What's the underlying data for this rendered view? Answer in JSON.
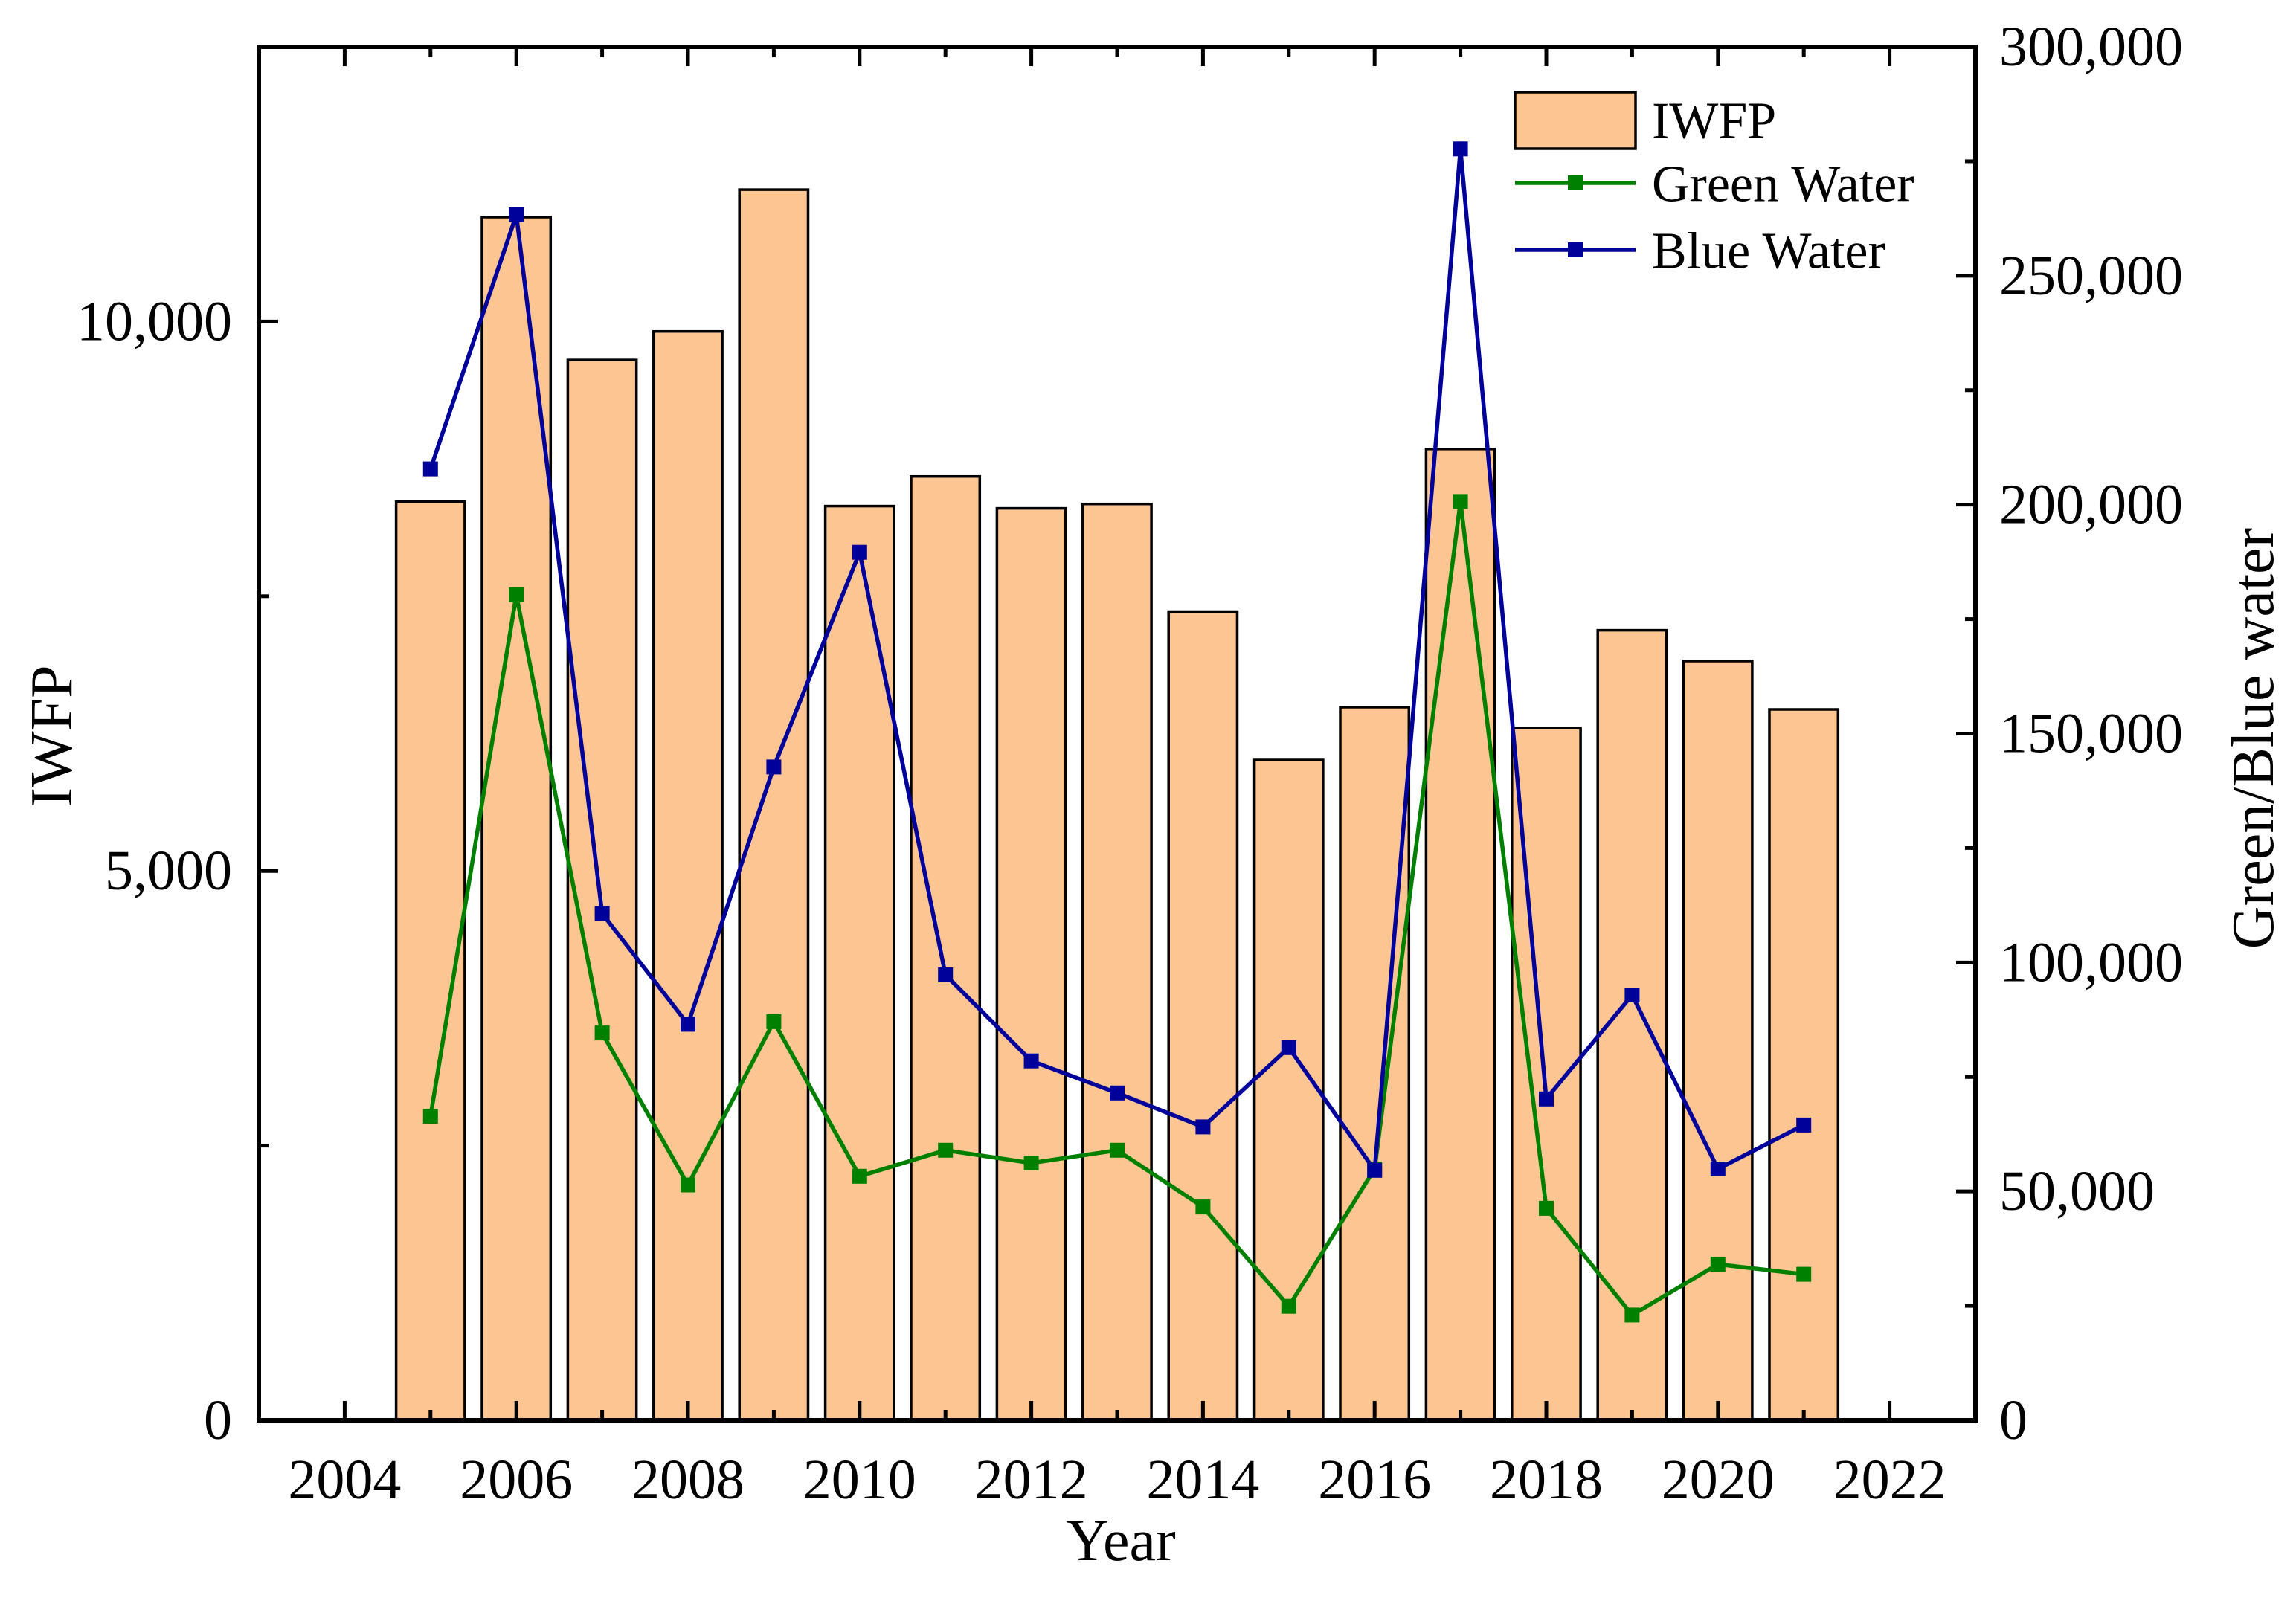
{
  "chart_data": {
    "type": "bar",
    "x": [
      2005,
      2006,
      2007,
      2008,
      2009,
      2010,
      2011,
      2012,
      2013,
      2014,
      2015,
      2016,
      2017,
      2018,
      2019,
      2020,
      2021
    ],
    "series": [
      {
        "name": "IWFP",
        "type": "bar",
        "axis": "left",
        "color": "#FCC592",
        "values": [
          8360,
          10950,
          9650,
          9910,
          11200,
          8320,
          8590,
          8300,
          8340,
          7360,
          6010,
          6490,
          8840,
          6300,
          7190,
          6910,
          6470
        ]
      },
      {
        "name": "Green Water",
        "type": "line",
        "axis": "right",
        "color": "#008000",
        "values": [
          66400,
          180300,
          84600,
          51400,
          87100,
          53300,
          59000,
          56200,
          59000,
          46600,
          24900,
          54900,
          200700,
          46300,
          23000,
          34100,
          31900
        ]
      },
      {
        "name": "Blue Water",
        "type": "line",
        "axis": "right",
        "color": "#00009A",
        "values": [
          207800,
          263300,
          110700,
          86500,
          142700,
          189600,
          97300,
          78500,
          71500,
          64100,
          81400,
          54600,
          277700,
          70200,
          92900,
          54900,
          64500
        ]
      }
    ],
    "xlabel": "Year",
    "ylabel": "IWFP",
    "y2label": "Green/Blue water",
    "xlim": [
      2003,
      2023
    ],
    "xticks": [
      2004,
      2006,
      2008,
      2010,
      2012,
      2014,
      2016,
      2018,
      2020,
      2022
    ],
    "xtick_labels": [
      "2004",
      "2006",
      "2008",
      "2010",
      "2012",
      "2014",
      "2016",
      "2018",
      "2020",
      "2022"
    ],
    "ylim": [
      0,
      12500
    ],
    "yticks": [
      0,
      5000,
      10000
    ],
    "ytick_labels": [
      "0",
      "5,000",
      "10,000"
    ],
    "y2lim": [
      0,
      300000
    ],
    "y2ticks": [
      0,
      50000,
      100000,
      150000,
      200000,
      250000,
      300000
    ],
    "y2tick_labels": [
      "0",
      "50,000",
      "100,000",
      "150,000",
      "200,000",
      "250,000",
      "300,000"
    ],
    "grid": false,
    "legend": "top-right"
  }
}
